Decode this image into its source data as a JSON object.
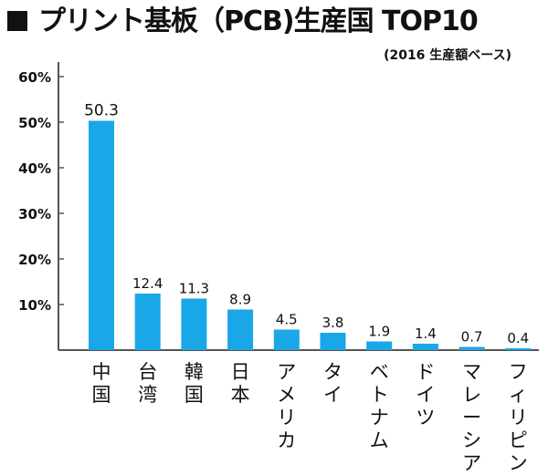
{
  "title": "プリント基板（PCB)生産国 TOP10",
  "subtitle": "(2016 生産額ベース)",
  "colors": {
    "bar": "#1aa7e8",
    "axis": "#555555",
    "text": "#111111"
  },
  "chart_data": {
    "type": "bar",
    "title": "プリント基板（PCB)生産国 TOP10",
    "subtitle": "(2016 生産額ベース)",
    "categories": [
      "中国",
      "台湾",
      "韓国",
      "日本",
      "アメリカ",
      "タイ",
      "ベトナム",
      "ドイツ",
      "マレーシア",
      "フィリピン"
    ],
    "values": [
      50.3,
      12.4,
      11.3,
      8.9,
      4.5,
      3.8,
      1.9,
      1.4,
      0.7,
      0.4
    ],
    "value_labels": [
      "50.3",
      "12.4",
      "11.3",
      "8.9",
      "4.5",
      "3.8",
      "1.9",
      "1.4",
      "0.7",
      "0.4"
    ],
    "y_ticks": [
      10,
      20,
      30,
      40,
      50,
      60
    ],
    "y_tick_labels": [
      "10%",
      "20%",
      "30%",
      "40%",
      "50%",
      "60%"
    ],
    "ylim": [
      0,
      60
    ],
    "xlabel": "",
    "ylabel": "",
    "grid": false,
    "legend": "none"
  }
}
